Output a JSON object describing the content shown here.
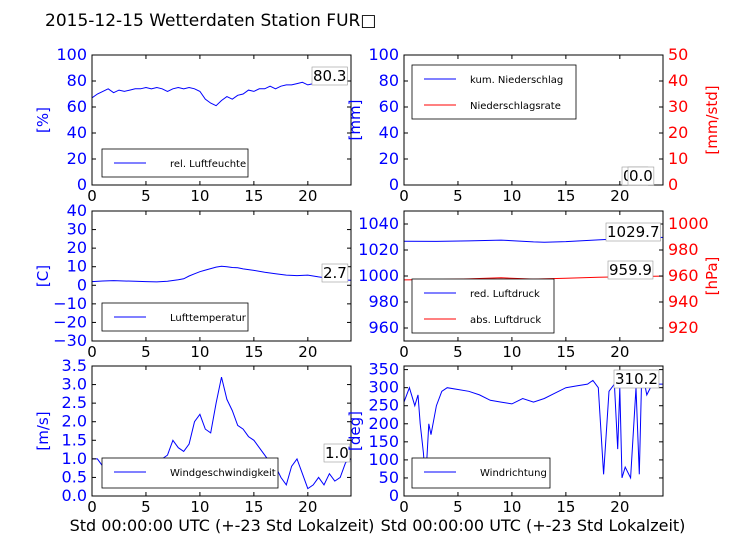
{
  "title": "2015-12-15 Wetterdaten Station FUR□",
  "xlabel": "Std 00:00:00 UTC (+-23 Std Lokalzeit)",
  "colors": {
    "primary": "#0000ff",
    "secondary": "#ff0000",
    "wind_light": "#8080ff"
  },
  "chart_data": [
    {
      "type": "line",
      "xlim": [
        0,
        24
      ],
      "xticks": [
        "0",
        "5",
        "10",
        "15",
        "20"
      ],
      "ylim": [
        0,
        100
      ],
      "yticks": [
        "0",
        "20",
        "40",
        "60",
        "80",
        "100"
      ],
      "ylabel": "[%]",
      "legend": "lower-left",
      "annotations": [
        "80.3"
      ],
      "series": [
        {
          "name": "rel. Luftfeuchte",
          "color": "#0000ff",
          "x": [
            0,
            0.5,
            1,
            1.5,
            2,
            2.5,
            3,
            3.5,
            4,
            4.5,
            5,
            5.5,
            6,
            6.5,
            7,
            7.5,
            8,
            8.5,
            9,
            9.5,
            10,
            10.5,
            11,
            11.5,
            12,
            12.5,
            13,
            13.5,
            14,
            14.5,
            15,
            15.5,
            16,
            16.5,
            17,
            17.5,
            18,
            18.5,
            19,
            19.5,
            20,
            20.5,
            21,
            21.5,
            22,
            22.5,
            23,
            23.5,
            24
          ],
          "values": [
            67,
            70,
            72,
            74,
            71,
            73,
            72,
            73,
            74,
            74,
            75,
            74,
            75,
            74,
            72,
            74,
            75,
            74,
            75,
            74,
            72,
            66,
            63,
            61,
            65,
            68,
            66,
            69,
            70,
            73,
            72,
            74,
            74,
            76,
            74,
            76,
            77,
            77,
            78,
            79,
            77,
            78,
            78,
            79,
            81,
            80,
            81,
            80,
            80
          ]
        }
      ]
    },
    {
      "type": "line",
      "xlim": [
        0,
        24
      ],
      "xticks": [
        "0",
        "5",
        "10",
        "15",
        "20"
      ],
      "ylim": [
        0,
        100
      ],
      "yticks": [
        "0",
        "20",
        "40",
        "60",
        "80",
        "100"
      ],
      "ylabel": "[mm]",
      "ylim_right": [
        0,
        50
      ],
      "yticks_right": [
        "0",
        "10",
        "20",
        "30",
        "40",
        "50"
      ],
      "ylabel_right": "[mm/std]",
      "legend": "top-left",
      "annotations": [
        "0.0",
        "0.0"
      ],
      "series": [
        {
          "name": "kum. Niederschlag",
          "color": "#0000ff",
          "axis": "left",
          "x": [
            0,
            24
          ],
          "values": [
            0,
            0
          ]
        },
        {
          "name": "Niederschlagsrate",
          "color": "#ff0000",
          "axis": "right",
          "x": [
            0,
            24
          ],
          "values": [
            0,
            0
          ]
        }
      ]
    },
    {
      "type": "line",
      "xlim": [
        0,
        24
      ],
      "xticks": [
        "0",
        "5",
        "10",
        "15",
        "20"
      ],
      "ylim": [
        -30,
        40
      ],
      "yticks": [
        "−30",
        "−20",
        "−10",
        "0",
        "10",
        "20",
        "30",
        "40"
      ],
      "ylabel": "[C]",
      "legend": "lower-left",
      "annotations": [
        "2.7"
      ],
      "series": [
        {
          "name": "Lufttemperatur",
          "color": "#0000ff",
          "x": [
            0,
            1,
            2,
            3,
            4,
            5,
            6,
            7,
            8,
            8.5,
            9,
            9.5,
            10,
            10.5,
            11,
            11.5,
            12,
            12.5,
            13,
            13.5,
            14,
            15,
            16,
            17,
            18,
            19,
            20,
            21,
            22,
            23,
            24
          ],
          "values": [
            2,
            2.3,
            2.5,
            2.3,
            2.2,
            2,
            1.8,
            2.2,
            3,
            3.5,
            5,
            6.2,
            7.3,
            8.2,
            9,
            9.8,
            10.2,
            10,
            9.6,
            9.4,
            8.8,
            8,
            7,
            6.2,
            5.5,
            5.2,
            5.5,
            4.5,
            3.7,
            3,
            2.7
          ]
        }
      ]
    },
    {
      "type": "line",
      "xlim": [
        0,
        24
      ],
      "xticks": [
        "0",
        "5",
        "10",
        "15",
        "20"
      ],
      "ylim": [
        950,
        1050
      ],
      "yticks": [
        "960",
        "980",
        "1000",
        "1020",
        "1040"
      ],
      "ylim_right": [
        910,
        1010
      ],
      "yticks_right": [
        "920",
        "940",
        "960",
        "980",
        "1000"
      ],
      "ylabel_right": "[hPa]",
      "legend": "lower-left",
      "annotations": [
        "1029.7",
        "959.9"
      ],
      "series": [
        {
          "name": "red. Luftdruck",
          "color": "#0000ff",
          "axis": "left",
          "x": [
            0,
            3,
            6,
            9,
            12,
            13,
            15,
            18,
            21,
            24
          ],
          "values": [
            1026.8,
            1026.6,
            1027,
            1027.6,
            1026.2,
            1026,
            1026.5,
            1027.8,
            1029,
            1029.7
          ]
        },
        {
          "name": "abs. Luftdruck",
          "color": "#ff0000",
          "axis": "right",
          "x": [
            0,
            3,
            6,
            9,
            12,
            15,
            18,
            21,
            24
          ],
          "values": [
            957,
            957.2,
            957.8,
            958.6,
            957.6,
            958.2,
            959,
            959.5,
            959.9
          ]
        }
      ]
    },
    {
      "type": "line",
      "xlim": [
        0,
        24
      ],
      "xticks": [
        "0",
        "5",
        "10",
        "15",
        "20"
      ],
      "ylim": [
        0,
        3.5
      ],
      "yticks": [
        "0.0",
        "0.5",
        "1.0",
        "1.5",
        "2.0",
        "2.5",
        "3.0",
        "3.5"
      ],
      "ylabel": "[m/s]",
      "legend": "lower-center",
      "annotations": [
        "1.0"
      ],
      "series": [
        {
          "name": "Windgeschwindigkeit",
          "color": "#0000ff",
          "x": [
            0,
            0.5,
            1,
            1.5,
            2,
            2.5,
            3,
            3.5,
            4,
            4.5,
            5,
            5.5,
            6,
            6.5,
            7,
            7.5,
            8,
            8.5,
            9,
            9.5,
            10,
            10.5,
            11,
            11.5,
            12,
            12.5,
            13,
            13.5,
            14,
            14.5,
            15,
            15.5,
            16,
            16.5,
            17,
            17.5,
            18,
            18.5,
            19,
            19.5,
            20,
            20.5,
            21,
            21.5,
            22,
            22.5,
            23,
            23.5,
            24
          ],
          "values": [
            1.0,
            1.0,
            0.8,
            0.9,
            0.5,
            0.4,
            0.6,
            0.5,
            0.7,
            0.8,
            0.9,
            1.0,
            1.0,
            1.0,
            1.1,
            1.5,
            1.3,
            1.2,
            1.4,
            2.0,
            2.2,
            1.8,
            1.7,
            2.5,
            3.2,
            2.6,
            2.3,
            1.9,
            1.8,
            1.6,
            1.5,
            1.3,
            1.1,
            0.9,
            0.8,
            0.5,
            0.3,
            0.8,
            1.0,
            0.6,
            0.2,
            0.3,
            0.5,
            0.3,
            0.6,
            0.4,
            0.5,
            0.9,
            1.0
          ]
        }
      ]
    },
    {
      "type": "line",
      "xlim": [
        0,
        24
      ],
      "xticks": [
        "0",
        "5",
        "10",
        "15",
        "20"
      ],
      "ylim": [
        0,
        360
      ],
      "yticks": [
        "0",
        "50",
        "100",
        "150",
        "200",
        "250",
        "300",
        "350"
      ],
      "ylabel": "[deg]",
      "legend": "lower-left",
      "annotations": [
        "310.2"
      ],
      "series": [
        {
          "name": "Windrichtung",
          "color": "#0000ff",
          "x": [
            0,
            0.5,
            1,
            1.3,
            1.5,
            1.8,
            2,
            2.3,
            2.5,
            3,
            3.5,
            4,
            5,
            6,
            7,
            8,
            9,
            10,
            11,
            12,
            13,
            14,
            15,
            16,
            17,
            17.5,
            18,
            18.5,
            19,
            19.5,
            19.8,
            20,
            20.2,
            20.5,
            21,
            21.5,
            21.8,
            22,
            22.3,
            22.5,
            23,
            24
          ],
          "values": [
            260,
            300,
            250,
            280,
            200,
            120,
            40,
            200,
            170,
            250,
            290,
            300,
            295,
            290,
            280,
            265,
            260,
            255,
            270,
            260,
            270,
            285,
            300,
            305,
            310,
            320,
            300,
            60,
            290,
            310,
            130,
            300,
            50,
            80,
            50,
            300,
            60,
            300,
            310,
            280,
            310,
            310
          ]
        }
      ]
    }
  ]
}
